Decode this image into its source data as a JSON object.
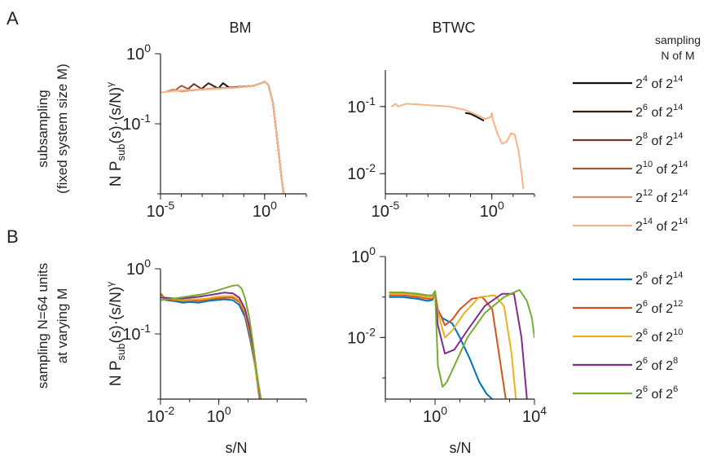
{
  "panel_labels": {
    "a": "A",
    "b": "B"
  },
  "column_titles": {
    "left": "BM",
    "right": "BTWC"
  },
  "row_labels": {
    "a_line1": "subsampling",
    "a_line2": "(fixed system size M)",
    "b_line1": "sampling N=64 units",
    "b_line2": "at varying M"
  },
  "ylabel": {
    "prefix": "N P",
    "sub": "sub",
    "suffix": "(s)·(s/N)",
    "sup": "γ"
  },
  "xlabel": "s/N",
  "legend_a": {
    "title_line1": "sampling",
    "title_line2": "N of M",
    "entries": [
      {
        "base1": "2",
        "exp1": "4",
        "mid": " of ",
        "base2": "2",
        "exp2": "14",
        "color": "#111111"
      },
      {
        "base1": "2",
        "exp1": "6",
        "mid": " of ",
        "base2": "2",
        "exp2": "14",
        "color": "#3a1e10"
      },
      {
        "base1": "2",
        "exp1": "8",
        "mid": " of ",
        "base2": "2",
        "exp2": "14",
        "color": "#6b3a22"
      },
      {
        "base1": "2",
        "exp1": "10",
        "mid": " of ",
        "base2": "2",
        "exp2": "14",
        "color": "#a25a38"
      },
      {
        "base1": "2",
        "exp1": "12",
        "mid": " of ",
        "base2": "2",
        "exp2": "14",
        "color": "#d98e68"
      },
      {
        "base1": "2",
        "exp1": "14",
        "mid": " of ",
        "base2": "2",
        "exp2": "14",
        "color": "#f7b48a"
      }
    ]
  },
  "legend_b": {
    "entries": [
      {
        "base1": "2",
        "exp1": "6",
        "mid": " of ",
        "base2": "2",
        "exp2": "14",
        "color": "#0072bd"
      },
      {
        "base1": "2",
        "exp1": "6",
        "mid": " of ",
        "base2": "2",
        "exp2": "12",
        "color": "#d95319"
      },
      {
        "base1": "2",
        "exp1": "6",
        "mid": " of ",
        "base2": "2",
        "exp2": "10",
        "color": "#edb120"
      },
      {
        "base1": "2",
        "exp1": "6",
        "mid": " of ",
        "base2": "2",
        "exp2": "8",
        "color": "#7e2f8e"
      },
      {
        "base1": "2",
        "exp1": "6",
        "mid": " of ",
        "base2": "2",
        "exp2": "6",
        "color": "#77ac30"
      }
    ]
  },
  "chart_data": [
    {
      "type": "line",
      "panel": "A",
      "title": "BM",
      "xscale": "log",
      "yscale": "log",
      "xlim": [
        1e-05,
        100
      ],
      "ylim": [
        0.01,
        1
      ],
      "xticks": [
        {
          "v": 1e-05,
          "b": "10",
          "e": "-5"
        },
        {
          "v": 1,
          "b": "10",
          "e": "0"
        }
      ],
      "yticks": [
        {
          "v": 1,
          "b": "10",
          "e": "0"
        },
        {
          "v": 0.1,
          "b": "10",
          "e": "-1"
        }
      ],
      "series": [
        {
          "name": "2^4 of 2^14",
          "color": "#111111",
          "x": [
            0.006,
            0.01,
            0.02,
            0.05,
            0.1,
            0.3,
            0.7,
            1.0,
            1.5,
            2.5,
            4,
            6,
            9
          ],
          "y": [
            0.32,
            0.38,
            0.33,
            0.33,
            0.34,
            0.35,
            0.38,
            0.4,
            0.36,
            0.2,
            0.06,
            0.02,
            0.008
          ]
        },
        {
          "name": "2^6 of 2^14",
          "color": "#3a1e10",
          "x": [
            0.001,
            0.002,
            0.006,
            0.02,
            0.1,
            0.3,
            0.7,
            1.0,
            1.5,
            2.5,
            4,
            6,
            9
          ],
          "y": [
            0.32,
            0.38,
            0.32,
            0.33,
            0.34,
            0.35,
            0.38,
            0.4,
            0.36,
            0.2,
            0.06,
            0.02,
            0.008
          ]
        },
        {
          "name": "2^8 of 2^14",
          "color": "#6b3a22",
          "x": [
            0.0002,
            0.0004,
            0.001,
            0.006,
            0.05,
            0.3,
            0.7,
            1.0,
            1.5,
            2.5,
            4,
            6,
            9
          ],
          "y": [
            0.31,
            0.37,
            0.31,
            0.32,
            0.33,
            0.35,
            0.38,
            0.4,
            0.36,
            0.2,
            0.06,
            0.02,
            0.008
          ]
        },
        {
          "name": "2^10 of 2^14",
          "color": "#a25a38",
          "x": [
            5e-05,
            0.0001,
            0.0003,
            0.003,
            0.05,
            0.3,
            0.7,
            1.0,
            1.5,
            2.5,
            4,
            6,
            9
          ],
          "y": [
            0.3,
            0.35,
            0.3,
            0.32,
            0.33,
            0.35,
            0.38,
            0.4,
            0.36,
            0.2,
            0.06,
            0.02,
            0.008
          ]
        },
        {
          "name": "2^12 of 2^14",
          "color": "#d98e68",
          "x": [
            2e-05,
            4e-05,
            0.0001,
            0.001,
            0.05,
            0.3,
            0.7,
            1.0,
            1.5,
            2.5,
            4,
            6,
            9
          ],
          "y": [
            0.29,
            0.31,
            0.29,
            0.31,
            0.33,
            0.35,
            0.38,
            0.4,
            0.36,
            0.2,
            0.06,
            0.02,
            0.008
          ]
        },
        {
          "name": "2^14 of 2^14",
          "color": "#f7b48a",
          "x": [
            1e-05,
            3e-05,
            0.0001,
            0.001,
            0.01,
            0.05,
            0.3,
            0.7,
            1.0,
            1.5,
            2.5,
            4,
            6,
            9
          ],
          "y": [
            0.28,
            0.29,
            0.3,
            0.31,
            0.32,
            0.33,
            0.35,
            0.38,
            0.4,
            0.36,
            0.2,
            0.06,
            0.02,
            0.008
          ]
        }
      ]
    },
    {
      "type": "line",
      "panel": "A",
      "title": "BTWC",
      "xscale": "log",
      "yscale": "log",
      "xlim": [
        1e-05,
        100
      ],
      "ylim": [
        0.005,
        0.35
      ],
      "xticks": [
        {
          "v": 1e-05,
          "b": "10",
          "e": "-5"
        },
        {
          "v": 1,
          "b": "10",
          "e": "0"
        }
      ],
      "yticks": [
        {
          "v": 0.1,
          "b": "10",
          "e": "-1"
        },
        {
          "v": 0.01,
          "b": "10",
          "e": "-2"
        }
      ],
      "series": [
        {
          "name": "2^4 of 2^14",
          "color": "#111111",
          "x": [
            0.06,
            0.1,
            0.2,
            0.4
          ],
          "y": [
            0.08,
            0.078,
            0.07,
            0.062
          ]
        },
        {
          "name": "2^14 of 2^14",
          "color": "#f7b48a",
          "x": [
            2e-05,
            3e-05,
            4e-05,
            6e-05,
            0.0001,
            0.0003,
            0.001,
            0.01,
            0.05,
            0.2,
            0.5,
            0.9,
            1.0,
            1.1,
            1.3,
            1.8,
            3,
            5,
            8,
            12,
            18,
            25,
            30
          ],
          "y": [
            0.1,
            0.11,
            0.1,
            0.105,
            0.11,
            0.108,
            0.105,
            0.1,
            0.09,
            0.075,
            0.065,
            0.07,
            0.08,
            0.065,
            0.055,
            0.04,
            0.028,
            0.03,
            0.04,
            0.038,
            0.022,
            0.01,
            0.006
          ]
        }
      ]
    },
    {
      "type": "line",
      "panel": "B",
      "title": "BM",
      "xscale": "log",
      "yscale": "log",
      "xlim": [
        0.01,
        1000
      ],
      "ylim": [
        0.01,
        1
      ],
      "xlabel": "s/N",
      "xticks": [
        {
          "v": 0.01,
          "b": "10",
          "e": "-2"
        },
        {
          "v": 1,
          "b": "10",
          "e": "0"
        }
      ],
      "yticks": [
        {
          "v": 1,
          "b": "10",
          "e": "0"
        },
        {
          "v": 0.1,
          "b": "10",
          "e": "-1"
        }
      ],
      "series": [
        {
          "name": "2^6 of 2^14",
          "color": "#0072bd",
          "x": [
            0.01,
            0.015,
            0.03,
            0.06,
            0.1,
            0.2,
            0.4,
            0.8,
            1.5,
            3,
            5,
            8,
            12,
            18,
            25
          ],
          "y": [
            0.4,
            0.33,
            0.32,
            0.3,
            0.31,
            0.3,
            0.32,
            0.33,
            0.34,
            0.33,
            0.28,
            0.18,
            0.08,
            0.03,
            0.01
          ]
        },
        {
          "name": "2^6 of 2^12",
          "color": "#d95319",
          "x": [
            0.01,
            0.015,
            0.03,
            0.06,
            0.1,
            0.2,
            0.4,
            0.8,
            1.5,
            3,
            5,
            8,
            12,
            18,
            25
          ],
          "y": [
            0.42,
            0.34,
            0.33,
            0.32,
            0.33,
            0.32,
            0.34,
            0.35,
            0.36,
            0.36,
            0.31,
            0.2,
            0.09,
            0.03,
            0.01
          ]
        },
        {
          "name": "2^6 of 2^10",
          "color": "#edb120",
          "x": [
            0.01,
            0.015,
            0.03,
            0.06,
            0.1,
            0.2,
            0.4,
            0.8,
            1.5,
            3,
            5,
            8,
            12,
            18,
            26
          ],
          "y": [
            0.38,
            0.35,
            0.34,
            0.33,
            0.34,
            0.34,
            0.35,
            0.37,
            0.38,
            0.38,
            0.33,
            0.22,
            0.1,
            0.03,
            0.01
          ]
        },
        {
          "name": "2^6 of 2^8",
          "color": "#7e2f8e",
          "x": [
            0.01,
            0.015,
            0.03,
            0.06,
            0.1,
            0.2,
            0.4,
            0.8,
            1.5,
            3,
            5,
            8,
            12,
            18,
            27
          ],
          "y": [
            0.36,
            0.36,
            0.35,
            0.35,
            0.36,
            0.37,
            0.39,
            0.41,
            0.43,
            0.42,
            0.36,
            0.24,
            0.11,
            0.035,
            0.01
          ]
        },
        {
          "name": "2^6 of 2^6",
          "color": "#77ac30",
          "x": [
            0.01,
            0.03,
            0.1,
            0.3,
            0.7,
            1.5,
            3,
            4.5,
            6,
            8,
            11,
            15,
            20,
            28
          ],
          "y": [
            0.33,
            0.35,
            0.38,
            0.41,
            0.45,
            0.5,
            0.55,
            0.56,
            0.5,
            0.35,
            0.18,
            0.07,
            0.025,
            0.01
          ]
        }
      ]
    },
    {
      "type": "line",
      "panel": "B",
      "title": "BTWC",
      "xscale": "log",
      "yscale": "log",
      "xlim": [
        0.01,
        10000
      ],
      "ylim": [
        0.0003,
        1
      ],
      "xlabel": "s/N",
      "xticks": [
        {
          "v": 1,
          "b": "10",
          "e": "0"
        },
        {
          "v": 10000,
          "b": "10",
          "e": "4"
        }
      ],
      "yticks": [
        {
          "v": 1,
          "b": "10",
          "e": "0"
        },
        {
          "v": 0.01,
          "b": "10",
          "e": "-2"
        }
      ],
      "series": [
        {
          "name": "2^6 of 2^14",
          "color": "#0072bd",
          "x": [
            0.015,
            0.05,
            0.2,
            0.5,
            0.8,
            1.0,
            1.2,
            2,
            5,
            10,
            25,
            60,
            120,
            200
          ],
          "y": [
            0.1,
            0.1,
            0.09,
            0.08,
            0.085,
            0.13,
            0.05,
            0.03,
            0.022,
            0.01,
            0.003,
            0.0008,
            0.0004,
            0.0003
          ]
        },
        {
          "name": "2^6 of 2^12",
          "color": "#d95319",
          "x": [
            0.015,
            0.05,
            0.2,
            0.5,
            0.8,
            1.0,
            1.3,
            2.5,
            5,
            10,
            30,
            80,
            200,
            400,
            700
          ],
          "y": [
            0.11,
            0.11,
            0.1,
            0.09,
            0.09,
            0.13,
            0.05,
            0.02,
            0.028,
            0.05,
            0.09,
            0.1,
            0.05,
            0.003,
            0.0003
          ]
        },
        {
          "name": "2^6 of 2^10",
          "color": "#edb120",
          "x": [
            0.015,
            0.05,
            0.2,
            0.5,
            0.8,
            1.0,
            1.3,
            2.5,
            5,
            15,
            60,
            250,
            600,
            1200,
            1800
          ],
          "y": [
            0.12,
            0.12,
            0.11,
            0.1,
            0.1,
            0.13,
            0.04,
            0.01,
            0.015,
            0.04,
            0.1,
            0.11,
            0.06,
            0.004,
            0.0003
          ]
        },
        {
          "name": "2^6 of 2^8",
          "color": "#7e2f8e",
          "x": [
            0.015,
            0.05,
            0.2,
            0.5,
            0.8,
            1.0,
            1.3,
            2.5,
            6,
            20,
            100,
            500,
            1500,
            3000,
            5000
          ],
          "y": [
            0.13,
            0.13,
            0.12,
            0.11,
            0.11,
            0.14,
            0.02,
            0.004,
            0.005,
            0.015,
            0.06,
            0.12,
            0.12,
            0.01,
            0.0003
          ]
        },
        {
          "name": "2^6 of 2^6",
          "color": "#77ac30",
          "x": [
            0.015,
            0.05,
            0.2,
            0.5,
            0.8,
            1.0,
            1.3,
            2,
            3,
            6,
            20,
            100,
            600,
            2500,
            5000,
            8000,
            10000
          ],
          "y": [
            0.13,
            0.13,
            0.12,
            0.11,
            0.11,
            0.14,
            0.002,
            0.0006,
            0.0008,
            0.002,
            0.01,
            0.04,
            0.1,
            0.15,
            0.08,
            0.03,
            0.01
          ]
        }
      ]
    }
  ]
}
